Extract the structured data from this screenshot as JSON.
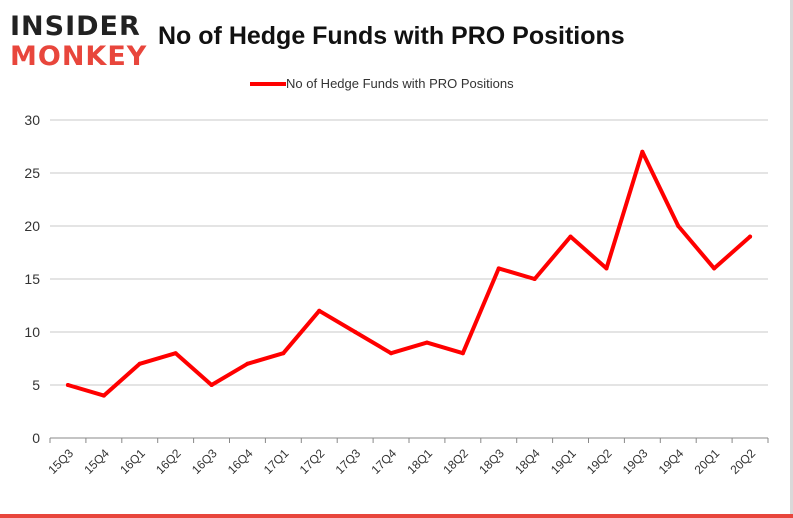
{
  "logo": {
    "line1": "INSIDER",
    "line2": "MONKEY"
  },
  "colors": {
    "line": "#ff0000",
    "grid": "#c8c8c8",
    "axis": "#888888",
    "logo_red": "#e8463c"
  },
  "chart_data": {
    "type": "line",
    "title": "No of Hedge Funds with PRO Positions",
    "xlabel": "",
    "ylabel": "",
    "ylim": [
      0,
      30
    ],
    "yticks": [
      0,
      5,
      10,
      15,
      20,
      25,
      30
    ],
    "grid": true,
    "legend_position": "top-center",
    "categories": [
      "15Q3",
      "15Q4",
      "16Q1",
      "16Q2",
      "16Q3",
      "16Q4",
      "17Q1",
      "17Q2",
      "17Q3",
      "17Q4",
      "18Q1",
      "18Q2",
      "18Q3",
      "18Q4",
      "19Q1",
      "19Q2",
      "19Q3",
      "19Q4",
      "20Q1",
      "20Q2"
    ],
    "series": [
      {
        "name": "No of Hedge Funds with PRO Positions",
        "values": [
          5,
          4,
          7,
          8,
          5,
          7,
          8,
          12,
          10,
          8,
          9,
          8,
          16,
          15,
          19,
          16,
          27,
          20,
          16,
          19
        ]
      }
    ]
  }
}
